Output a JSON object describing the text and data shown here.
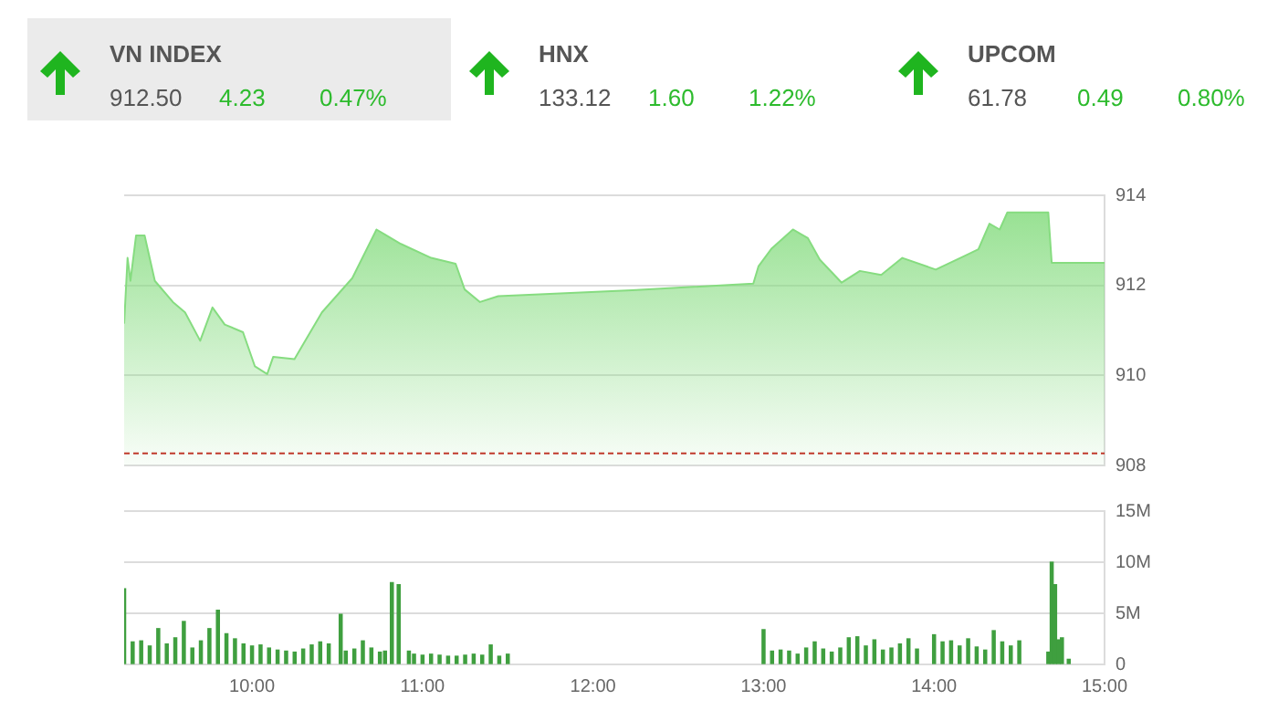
{
  "chart_data": [
    {
      "type": "other",
      "categories": [
        "VN INDEX",
        "HNX",
        "UPCOM"
      ],
      "annotations": [
        "912.50",
        "4.23",
        "0.47%",
        "133.12",
        "1.60",
        "1.22%",
        "61.78",
        "0.49",
        "0.80%"
      ]
    },
    {
      "type": "area",
      "color": "#86dc80",
      "xlim": [
        9.25,
        15
      ],
      "ylim": [
        908,
        914
      ],
      "yticks": [
        908,
        910,
        912,
        914
      ],
      "grid": "y",
      "tick_labels": "y",
      "x": [
        9.25,
        9.27,
        9.287,
        9.32,
        9.37,
        9.43,
        9.536,
        9.607,
        9.696,
        9.768,
        9.84,
        9.947,
        10.017,
        10.089,
        10.124,
        10.249,
        10.303,
        10.41,
        10.588,
        10.73,
        10.873,
        11.051,
        11.194,
        11.247,
        11.337,
        11.444,
        12.23,
        12.94,
        12.97,
        13.048,
        13.172,
        13.26,
        13.33,
        13.458,
        13.565,
        13.69,
        13.814,
        14.01,
        14.188,
        14.26,
        14.325,
        14.385,
        14.43,
        14.67,
        14.69,
        15
      ],
      "values": [
        911.15,
        912.61,
        912.1,
        913.11,
        913.11,
        912.1,
        911.63,
        911.4,
        910.77,
        911.51,
        911.13,
        910.96,
        910.2,
        910.03,
        910.41,
        910.36,
        910.71,
        911.4,
        912.16,
        913.24,
        912.92,
        912.61,
        912.48,
        911.91,
        911.63,
        911.76,
        911.89,
        912.04,
        912.42,
        912.82,
        913.24,
        913.05,
        912.57,
        912.06,
        912.32,
        912.23,
        912.61,
        912.35,
        912.67,
        912.8,
        913.37,
        913.24,
        913.62,
        913.62,
        912.5,
        912.5
      ],
      "ref_lines": [
        {
          "axis": "y",
          "value": 908.27,
          "color": "#c0392b",
          "line_style": "dashed"
        }
      ]
    },
    {
      "type": "bar",
      "color": "#3f9f3f",
      "xlim": [
        9.25,
        15
      ],
      "ylim": [
        0,
        15
      ],
      "grid": "y",
      "xticks": [
        {
          "value": 10,
          "label": "10:00"
        },
        {
          "value": 11,
          "label": "11:00"
        },
        {
          "value": 12,
          "label": "12:00"
        },
        {
          "value": 13,
          "label": "13:00"
        },
        {
          "value": 14,
          "label": "14:00"
        },
        {
          "value": 15,
          "label": "15:00"
        }
      ],
      "yticks": [
        0,
        {
          "value": 5,
          "label": "5M"
        },
        {
          "value": 10,
          "label": "10M"
        },
        {
          "value": 15,
          "label": "15M"
        }
      ],
      "x": [
        9.25,
        9.3,
        9.35,
        9.4,
        9.45,
        9.5,
        9.55,
        9.6,
        9.65,
        9.7,
        9.75,
        9.8,
        9.85,
        9.9,
        9.95,
        10,
        10.05,
        10.1,
        10.15,
        10.2,
        10.25,
        10.3,
        10.35,
        10.4,
        10.45,
        10.52,
        10.55,
        10.6,
        10.65,
        10.7,
        10.75,
        10.78,
        10.82,
        10.86,
        10.92,
        10.95,
        11,
        11.05,
        11.1,
        11.15,
        11.2,
        11.25,
        11.3,
        11.35,
        11.4,
        11.45,
        11.5,
        13,
        13.05,
        13.1,
        13.15,
        13.2,
        13.25,
        13.3,
        13.35,
        13.4,
        13.45,
        13.5,
        13.55,
        13.6,
        13.65,
        13.7,
        13.75,
        13.8,
        13.85,
        13.9,
        14,
        14.05,
        14.1,
        14.15,
        14.2,
        14.25,
        14.3,
        14.35,
        14.4,
        14.45,
        14.5,
        14.67,
        14.69,
        14.71,
        14.73,
        14.75,
        14.79
      ],
      "values": [
        7.4,
        2.2,
        2.3,
        1.8,
        3.5,
        2,
        2.6,
        4.2,
        1.6,
        2.3,
        3.5,
        5.3,
        3,
        2.5,
        2,
        1.8,
        1.9,
        1.6,
        1.4,
        1.3,
        1.2,
        1.5,
        1.9,
        2.2,
        2,
        4.9,
        1.3,
        1.5,
        2.3,
        1.6,
        1.2,
        1.3,
        8,
        7.8,
        1.3,
        1,
        0.9,
        1,
        0.9,
        0.8,
        0.8,
        0.9,
        1,
        0.9,
        1.9,
        0.8,
        1,
        3.4,
        1.3,
        1.4,
        1.3,
        1,
        1.6,
        2.2,
        1.5,
        1.2,
        1.6,
        2.6,
        2.7,
        1.8,
        2.4,
        1.4,
        1.6,
        2,
        2.5,
        1.5,
        2.9,
        2.2,
        2.3,
        1.8,
        2.5,
        1.7,
        1.4,
        3.3,
        2.2,
        1.8,
        2.3,
        1.2,
        10,
        7.8,
        2.4,
        2.6,
        0.5
      ]
    }
  ]
}
